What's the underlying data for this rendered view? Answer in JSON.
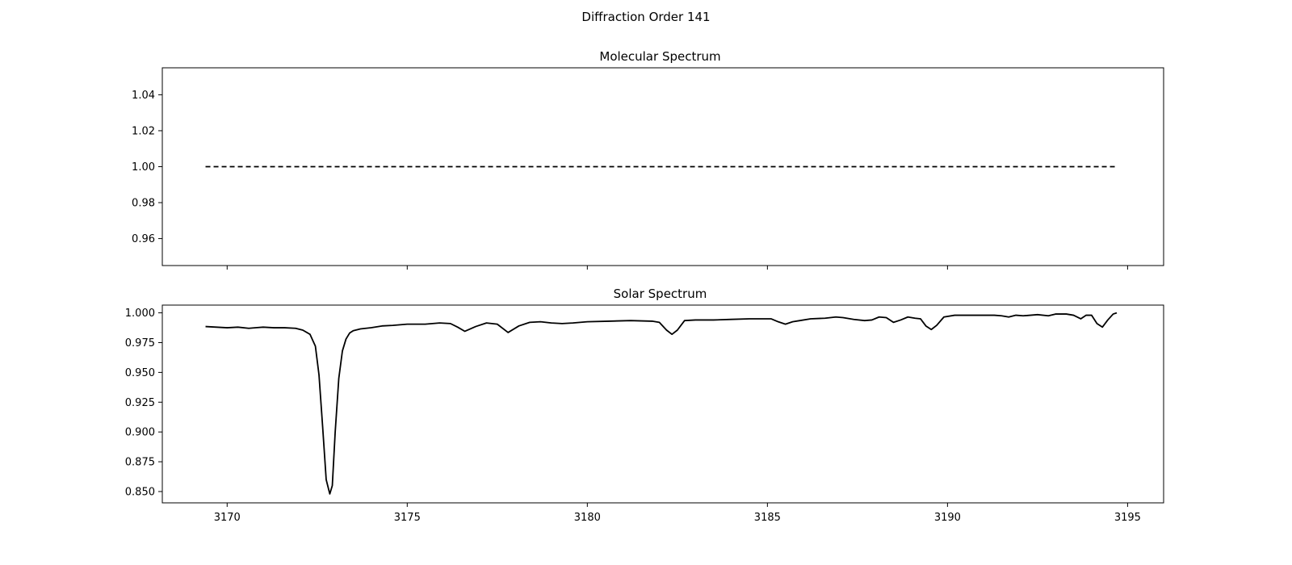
{
  "figure_title": "Diffraction Order 141",
  "chart_data": [
    {
      "type": "line",
      "title": "Molecular Spectrum",
      "xlabel": "",
      "ylabel": "",
      "xlim": [
        3168.2,
        3196.0
      ],
      "ylim": [
        0.945,
        1.055
      ],
      "x_ticks": [
        3170,
        3175,
        3180,
        3185,
        3190,
        3195
      ],
      "x_tick_labels_shown": false,
      "y_ticks": [
        0.96,
        0.98,
        1.0,
        1.02,
        1.04
      ],
      "y_tick_labels": [
        "0.96",
        "0.98",
        "1.00",
        "1.02",
        "1.04"
      ],
      "grid": false,
      "legend": "none",
      "series": [
        {
          "line_style": "dashed",
          "color": "#000000",
          "x": [
            3169.4,
            3194.7
          ],
          "y": [
            1.0,
            1.0
          ]
        }
      ]
    },
    {
      "type": "line",
      "title": "Solar Spectrum",
      "xlabel": "",
      "ylabel": "",
      "xlim": [
        3168.2,
        3196.0
      ],
      "ylim": [
        0.8405,
        1.0065
      ],
      "x_ticks": [
        3170,
        3175,
        3180,
        3185,
        3190,
        3195
      ],
      "x_tick_labels": [
        "3170",
        "3175",
        "3180",
        "3185",
        "3190",
        "3195"
      ],
      "y_ticks": [
        0.85,
        0.875,
        0.9,
        0.925,
        0.95,
        0.975,
        1.0
      ],
      "y_tick_labels": [
        "0.850",
        "0.875",
        "0.900",
        "0.925",
        "0.950",
        "0.975",
        "1.000"
      ],
      "grid": false,
      "legend": "none",
      "series": [
        {
          "line_style": "solid",
          "color": "#000000",
          "x": [
            3169.4,
            3170.0,
            3170.3,
            3170.6,
            3170.8,
            3171.0,
            3171.3,
            3171.6,
            3171.9,
            3172.1,
            3172.3,
            3172.45,
            3172.55,
            3172.65,
            3172.75,
            3172.85,
            3172.92,
            3173.0,
            3173.1,
            3173.2,
            3173.3,
            3173.4,
            3173.5,
            3173.7,
            3174.0,
            3174.3,
            3174.6,
            3175.0,
            3175.5,
            3175.9,
            3176.2,
            3176.4,
            3176.6,
            3176.9,
            3177.2,
            3177.5,
            3177.8,
            3178.1,
            3178.4,
            3178.7,
            3179.0,
            3179.3,
            3179.6,
            3180.0,
            3180.6,
            3181.2,
            3181.8,
            3182.0,
            3182.2,
            3182.35,
            3182.5,
            3182.7,
            3183.0,
            3183.5,
            3184.0,
            3184.5,
            3185.1,
            3185.3,
            3185.5,
            3185.7,
            3185.9,
            3186.2,
            3186.6,
            3186.9,
            3187.1,
            3187.4,
            3187.7,
            3187.9,
            3188.1,
            3188.3,
            3188.5,
            3188.7,
            3188.9,
            3189.1,
            3189.25,
            3189.4,
            3189.55,
            3189.7,
            3189.9,
            3190.2,
            3190.6,
            3191.0,
            3191.3,
            3191.5,
            3191.7,
            3191.9,
            3192.1,
            3192.3,
            3192.5,
            3192.8,
            3193.0,
            3193.3,
            3193.5,
            3193.7,
            3193.85,
            3194.0,
            3194.15,
            3194.3,
            3194.45,
            3194.6,
            3194.7
          ],
          "y": [
            0.9885,
            0.9875,
            0.988,
            0.987,
            0.9875,
            0.988,
            0.9875,
            0.9875,
            0.987,
            0.9855,
            0.982,
            0.972,
            0.948,
            0.905,
            0.86,
            0.848,
            0.855,
            0.9,
            0.945,
            0.968,
            0.978,
            0.983,
            0.985,
            0.9865,
            0.9875,
            0.989,
            0.9895,
            0.9905,
            0.9905,
            0.9915,
            0.991,
            0.988,
            0.9845,
            0.9885,
            0.9915,
            0.9905,
            0.9835,
            0.989,
            0.992,
            0.9925,
            0.9915,
            0.991,
            0.9915,
            0.9925,
            0.993,
            0.9935,
            0.993,
            0.992,
            0.9855,
            0.982,
            0.9855,
            0.9935,
            0.994,
            0.994,
            0.9945,
            0.995,
            0.995,
            0.9925,
            0.9905,
            0.9925,
            0.9935,
            0.995,
            0.9955,
            0.9965,
            0.996,
            0.9945,
            0.9935,
            0.994,
            0.9965,
            0.996,
            0.992,
            0.994,
            0.9965,
            0.9955,
            0.995,
            0.989,
            0.986,
            0.9895,
            0.9965,
            0.998,
            0.998,
            0.998,
            0.998,
            0.9975,
            0.9965,
            0.998,
            0.9975,
            0.998,
            0.9985,
            0.9975,
            0.999,
            0.999,
            0.998,
            0.995,
            0.998,
            0.998,
            0.991,
            0.988,
            0.994,
            0.999,
            1.0
          ]
        }
      ]
    }
  ]
}
